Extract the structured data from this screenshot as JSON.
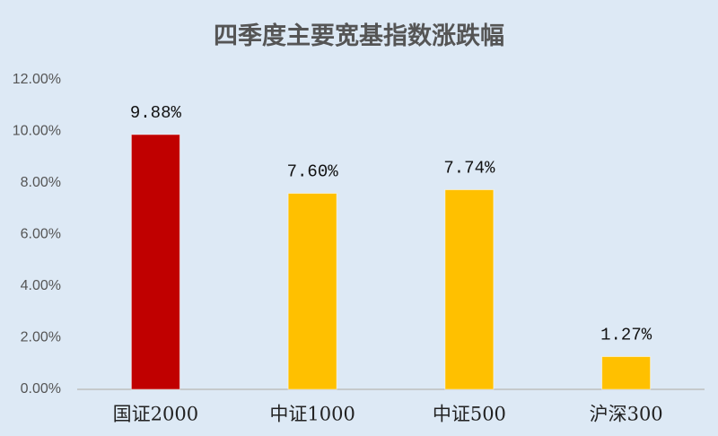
{
  "chart_data": {
    "type": "bar",
    "title": "四季度主要宽基指数涨跌幅",
    "categories": [
      "国证2000",
      "中证1000",
      "中证500",
      "沪深300"
    ],
    "values": [
      9.88,
      7.6,
      7.74,
      1.27
    ],
    "value_labels": [
      "9.88%",
      "7.60%",
      "7.74%",
      "1.27%"
    ],
    "colors": [
      "#c00000",
      "#ffc000",
      "#ffc000",
      "#ffc000"
    ],
    "ylim": [
      0,
      12
    ],
    "yticks": [
      {
        "value": 0,
        "label": "0.00%"
      },
      {
        "value": 2,
        "label": "2.00%"
      },
      {
        "value": 4,
        "label": "4.00%"
      },
      {
        "value": 6,
        "label": "6.00%"
      },
      {
        "value": 8,
        "label": "8.00%"
      },
      {
        "value": 10,
        "label": "10.00%"
      },
      {
        "value": 12,
        "label": "12.00%"
      }
    ],
    "grid": false
  }
}
